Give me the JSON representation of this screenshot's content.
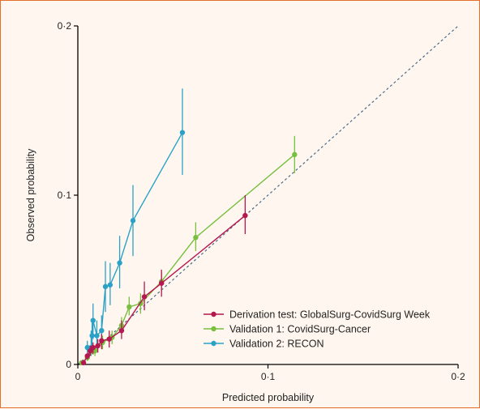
{
  "chart_data": {
    "type": "line",
    "xlabel": "Predicted probability",
    "ylabel": "Observed probability",
    "xlim": [
      0,
      0.2
    ],
    "ylim": [
      0,
      0.2
    ],
    "x_ticks": [
      0,
      0.1,
      0.2
    ],
    "x_tick_labels": [
      "0",
      "0·1",
      "0·2"
    ],
    "y_ticks": [
      0,
      0.1,
      0.2
    ],
    "y_tick_labels": [
      "0",
      "0·1",
      "0·2"
    ],
    "reference_line": "dashed diagonal y = x",
    "legend_position": "bottom-right",
    "series": [
      {
        "name": "Derivation test: GlobalSurg-CovidSurg Week",
        "color": "#b5174f",
        "points": [
          {
            "x": 0.003,
            "y": 0.001,
            "lo": 0.0005,
            "hi": 0.0015
          },
          {
            "x": 0.005,
            "y": 0.005,
            "lo": 0.003,
            "hi": 0.007
          },
          {
            "x": 0.0065,
            "y": 0.008,
            "lo": 0.005,
            "hi": 0.011
          },
          {
            "x": 0.008,
            "y": 0.01,
            "lo": 0.006,
            "hi": 0.013
          },
          {
            "x": 0.0105,
            "y": 0.011,
            "lo": 0.007,
            "hi": 0.015
          },
          {
            "x": 0.0125,
            "y": 0.014,
            "lo": 0.009,
            "hi": 0.018
          },
          {
            "x": 0.0165,
            "y": 0.015,
            "lo": 0.01,
            "hi": 0.02
          },
          {
            "x": 0.023,
            "y": 0.02,
            "lo": 0.015,
            "hi": 0.026
          },
          {
            "x": 0.035,
            "y": 0.04,
            "lo": 0.032,
            "hi": 0.049
          },
          {
            "x": 0.044,
            "y": 0.048,
            "lo": 0.04,
            "hi": 0.056
          },
          {
            "x": 0.088,
            "y": 0.088,
            "lo": 0.077,
            "hi": 0.1
          }
        ]
      },
      {
        "name": "Validation 1: CovidSurg-Cancer",
        "color": "#78bf3f",
        "points": [
          {
            "x": 0.002,
            "y": 0.001,
            "lo": 0.0005,
            "hi": 0.002
          },
          {
            "x": 0.005,
            "y": 0.004,
            "lo": 0.002,
            "hi": 0.006
          },
          {
            "x": 0.009,
            "y": 0.008,
            "lo": 0.005,
            "hi": 0.011
          },
          {
            "x": 0.013,
            "y": 0.013,
            "lo": 0.009,
            "hi": 0.017
          },
          {
            "x": 0.018,
            "y": 0.016,
            "lo": 0.012,
            "hi": 0.02
          },
          {
            "x": 0.023,
            "y": 0.023,
            "lo": 0.018,
            "hi": 0.028
          },
          {
            "x": 0.027,
            "y": 0.034,
            "lo": 0.029,
            "hi": 0.04
          },
          {
            "x": 0.033,
            "y": 0.036,
            "lo": 0.03,
            "hi": 0.042
          },
          {
            "x": 0.044,
            "y": 0.049,
            "lo": 0.043,
            "hi": 0.055
          },
          {
            "x": 0.062,
            "y": 0.075,
            "lo": 0.067,
            "hi": 0.084
          },
          {
            "x": 0.114,
            "y": 0.124,
            "lo": 0.113,
            "hi": 0.135
          }
        ]
      },
      {
        "name": "Validation 2: RECON",
        "color": "#2aa2c8",
        "points": [
          {
            "x": 0.005,
            "y": 0.01,
            "lo": 0.007,
            "hi": 0.014
          },
          {
            "x": 0.007,
            "y": 0.01,
            "lo": 0.005,
            "hi": 0.02
          },
          {
            "x": 0.0075,
            "y": 0.017,
            "lo": 0.009,
            "hi": 0.026
          },
          {
            "x": 0.008,
            "y": 0.026,
            "lo": 0.015,
            "hi": 0.036
          },
          {
            "x": 0.01,
            "y": 0.017,
            "lo": 0.009,
            "hi": 0.026
          },
          {
            "x": 0.0125,
            "y": 0.02,
            "lo": 0.011,
            "hi": 0.029
          },
          {
            "x": 0.0145,
            "y": 0.046,
            "lo": 0.031,
            "hi": 0.061
          },
          {
            "x": 0.017,
            "y": 0.047,
            "lo": 0.035,
            "hi": 0.06
          },
          {
            "x": 0.022,
            "y": 0.06,
            "lo": 0.045,
            "hi": 0.076
          },
          {
            "x": 0.029,
            "y": 0.085,
            "lo": 0.064,
            "hi": 0.106
          },
          {
            "x": 0.055,
            "y": 0.137,
            "lo": 0.112,
            "hi": 0.163
          }
        ]
      }
    ]
  }
}
